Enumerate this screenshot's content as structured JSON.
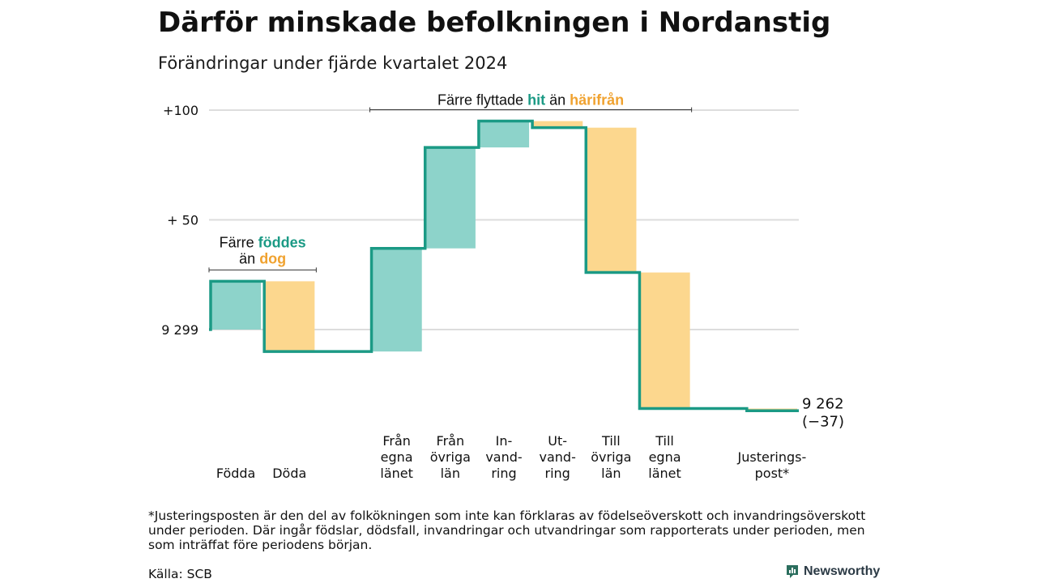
{
  "chart_data": {
    "type": "waterfall",
    "title": "Därför minskade befolkningen i Nordanstig",
    "subtitle": "Förändringar under fjärde kvartalet 2024",
    "start_value": 9299,
    "y_ticks": [
      {
        "value": 100,
        "label": "+100"
      },
      {
        "value": 50,
        "label": "+ 50"
      },
      {
        "value": 0,
        "label": "9 299"
      }
    ],
    "ylim": [
      -38,
      101
    ],
    "steps": [
      {
        "label_lines": [
          "Födda"
        ],
        "change": 22,
        "kind": "plus"
      },
      {
        "label_lines": [
          "Döda"
        ],
        "change": -32,
        "kind": "minus"
      },
      {
        "label_lines": [],
        "change": 0,
        "kind": "none"
      },
      {
        "label_lines": [
          "Från",
          "egna",
          "länet"
        ],
        "change": 47,
        "kind": "plus"
      },
      {
        "label_lines": [
          "Från",
          "övriga",
          "län"
        ],
        "change": 46,
        "kind": "plus"
      },
      {
        "label_lines": [
          "In-",
          "vand-",
          "ring"
        ],
        "change": 12,
        "kind": "plus"
      },
      {
        "label_lines": [
          "Ut-",
          "vand-",
          "ring"
        ],
        "change": -3,
        "kind": "minus"
      },
      {
        "label_lines": [
          "Till",
          "övriga",
          "län"
        ],
        "change": -66,
        "kind": "minus"
      },
      {
        "label_lines": [
          "Till",
          "egna",
          "länet"
        ],
        "change": -62,
        "kind": "minus"
      },
      {
        "label_lines": [],
        "change": 0,
        "kind": "none"
      },
      {
        "label_lines": [
          "Justerings-",
          "post*"
        ],
        "change": -1,
        "kind": "minus"
      }
    ],
    "end_label": [
      "9 262",
      "(−37)"
    ],
    "annotations": [
      {
        "parts": [
          {
            "t": "Färre "
          },
          {
            "t": "föddes",
            "c": "plus"
          }
        ],
        "parts2": [
          {
            "t": "än "
          },
          {
            "t": "dog",
            "c": "minus"
          }
        ],
        "from": 0,
        "to": 1
      },
      {
        "parts": [
          {
            "t": "Färre flyttade "
          },
          {
            "t": "hit",
            "c": "plus"
          },
          {
            "t": " än "
          },
          {
            "t": "härifrån",
            "c": "minus"
          }
        ],
        "from": 3,
        "to": 8
      }
    ],
    "colors": {
      "plus": "#8dd3ca",
      "minus": "#fcd78e",
      "line": "#1b9a85",
      "plus_text": "#1b9a85",
      "minus_text": "#f0a22f",
      "grid": "#dddddd"
    }
  },
  "footnote": "*Justeringsposten är den del av folkökningen som inte kan förklaras av födelseöverskott och invandringsöverskott under perioden. Där ingår födslar, dödsfall, invandringar och utvandringar som rapporterats under perioden, men som inträffat före periodens början.",
  "source": "Källa: SCB",
  "brand": {
    "name": "Newsworthy",
    "icon": "newsworthy-logo-icon"
  }
}
